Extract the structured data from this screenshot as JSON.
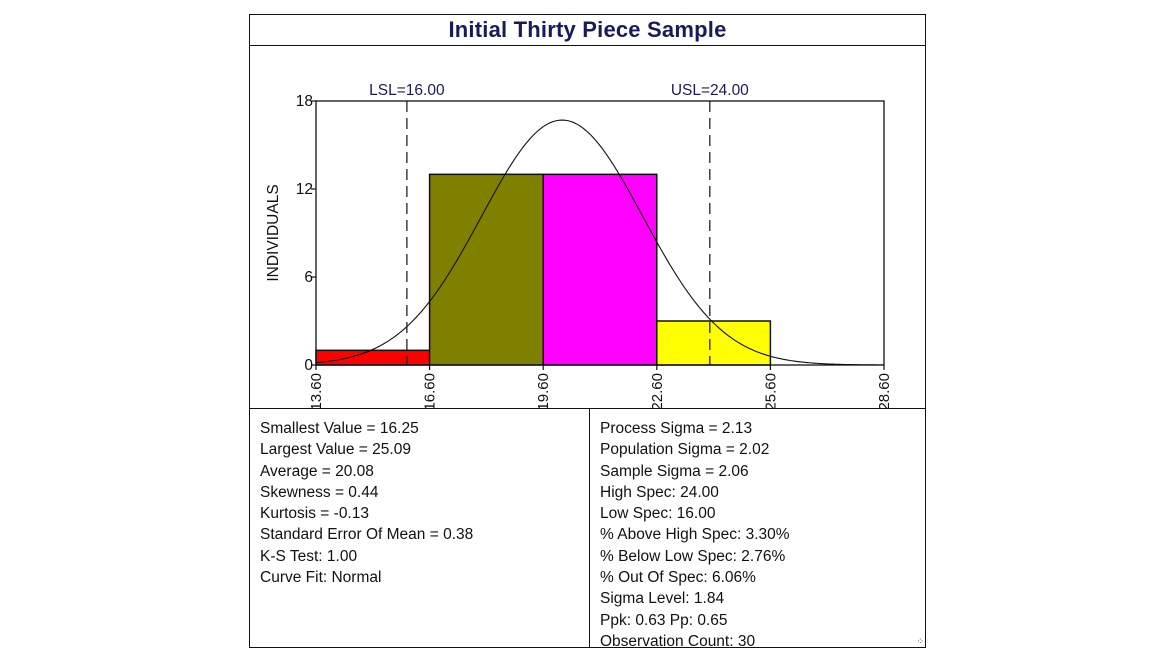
{
  "title": "Initial Thirty Piece Sample",
  "chart_data": {
    "type": "bar",
    "title": "Initial Thirty Piece Sample",
    "xlabel": "",
    "ylabel": "INDIVIDUALS",
    "xlim": [
      13.6,
      28.6
    ],
    "ylim": [
      0,
      18
    ],
    "x_ticks": [
      "13.60",
      "16.60",
      "19.60",
      "22.60",
      "25.60",
      "28.60"
    ],
    "y_ticks": [
      "0",
      "6",
      "12",
      "18"
    ],
    "bins": [
      {
        "start": 13.6,
        "end": 16.6,
        "count": 1,
        "color": "#ff0000"
      },
      {
        "start": 16.6,
        "end": 19.6,
        "count": 13,
        "color": "#808000"
      },
      {
        "start": 19.6,
        "end": 22.6,
        "count": 13,
        "color": "#ff00ff"
      },
      {
        "start": 22.6,
        "end": 25.6,
        "count": 3,
        "color": "#ffff00"
      }
    ],
    "curve": {
      "type": "normal",
      "peak_x": 20.1,
      "peak_y": 16.7,
      "sigma": 2.13
    },
    "spec_lines": [
      {
        "label": "LSL=16.00",
        "value": 16.0
      },
      {
        "label": "USL=24.00",
        "value": 24.0
      }
    ],
    "grid": false,
    "legend": "none"
  },
  "stats_left": [
    "Smallest Value = 16.25",
    "Largest Value = 25.09",
    "Average = 20.08",
    "Skewness = 0.44",
    "Kurtosis = -0.13",
    "Standard Error Of Mean = 0.38",
    "K-S Test: 1.00",
    "Curve Fit: Normal"
  ],
  "stats_right": [
    "Process Sigma = 2.13",
    "Population Sigma = 2.02",
    "Sample Sigma = 2.06",
    "High Spec: 24.00",
    "Low Spec: 16.00",
    "% Above High Spec: 3.30%",
    "% Below Low Spec: 2.76%",
    "% Out Of Spec: 6.06%",
    "Sigma Level: 1.84",
    "Ppk: 0.63   Pp: 0.65",
    "Observation Count: 30"
  ],
  "colors": {
    "title": "#1a1a5a",
    "spec_label": "#1a1a5a",
    "axis": "#111111"
  }
}
